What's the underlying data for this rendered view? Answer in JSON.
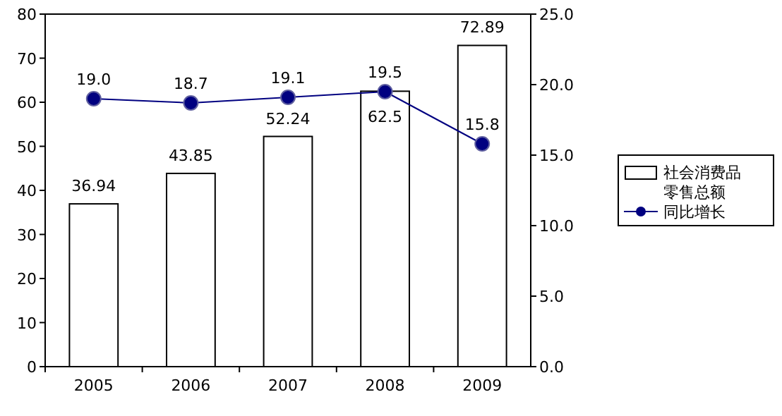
{
  "chart_data": {
    "type": "bar",
    "categories": [
      "2005",
      "2006",
      "2007",
      "2008",
      "2009"
    ],
    "series": [
      {
        "name": "社会消费品零售总额",
        "color": "#ffffff",
        "values": [
          36.94,
          43.85,
          52.24,
          62.5,
          72.89
        ],
        "value_labels": [
          "36.94",
          "43.85",
          "52.24",
          "62.5",
          "72.89"
        ]
      },
      {
        "name": "同比增长",
        "type": "line",
        "axis": "y2",
        "color": "#000080",
        "values": [
          19.0,
          18.7,
          19.1,
          19.5,
          15.8
        ],
        "value_labels": [
          "19.0",
          "18.7",
          "19.1",
          "19.5",
          "15.8"
        ]
      }
    ],
    "ylim": [
      0,
      80
    ],
    "yticks": [
      0,
      10,
      20,
      30,
      40,
      50,
      60,
      70,
      80
    ],
    "y2lim": [
      0,
      25
    ],
    "y2ticks": [
      {
        "value": 0,
        "label": "0.0"
      },
      {
        "value": 5,
        "label": "5.0"
      },
      {
        "value": 10,
        "label": "10.0"
      },
      {
        "value": 15,
        "label": "15.0"
      },
      {
        "value": 20,
        "label": "20.0"
      },
      {
        "value": 25,
        "label": "25.0"
      }
    ],
    "marker": "circle",
    "legend": "right",
    "grid": false
  }
}
